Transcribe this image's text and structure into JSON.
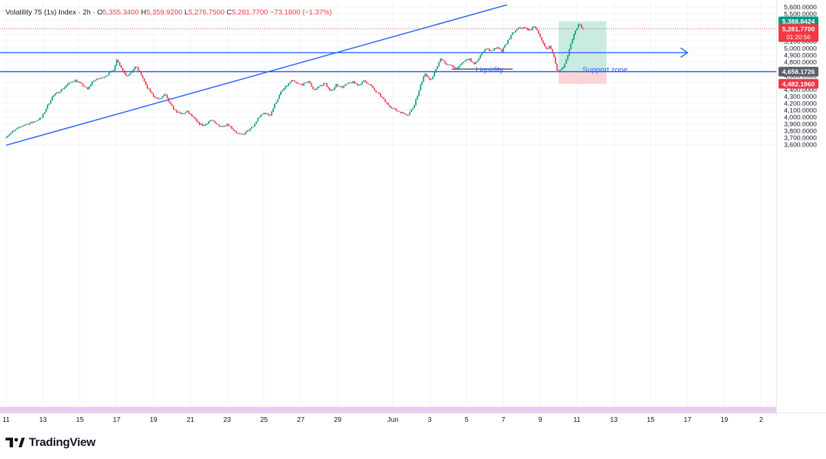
{
  "header": {
    "symbol": "Volatility 75 (1s) Index",
    "interval": "2h",
    "open_label": "O",
    "open": "5,355.3400",
    "high_label": "H",
    "high": "5,359.9200",
    "low_label": "L",
    "low": "5,276.7500",
    "close_label": "C",
    "close": "5,281.7700",
    "change": "−73.1800 (−1.37%)"
  },
  "branding": {
    "name": "TradingView"
  },
  "colors": {
    "up": "#089981",
    "down": "#f23645",
    "line": "#2962ff",
    "profit_zone": "#b8e6d5",
    "stop_zone": "#f9c9cd",
    "price_badge_green": "#089981",
    "price_badge_red": "#f23645",
    "price_badge_gray": "#5d606b"
  },
  "chart_data": {
    "type": "candlestick",
    "yticks": [
      "5,600.0000",
      "5,500.0000",
      "5,400.0000",
      "5,300.0000",
      "5,200.0000",
      "5,100.0000",
      "5,000.0000",
      "4,900.0000",
      "4,800.0000",
      "4,700.0000",
      "4,600.0000",
      "4,500.0000",
      "4,400.0000",
      "4,300.0000",
      "4,200.0000",
      "4,100.0000",
      "4,000.0000",
      "3,900.0000",
      "3,800.0000",
      "3,700.0000",
      "3,600.0000"
    ],
    "xticks": [
      {
        "label": "11",
        "day": 11
      },
      {
        "label": "13",
        "day": 13
      },
      {
        "label": "15",
        "day": 15
      },
      {
        "label": "17",
        "day": 17
      },
      {
        "label": "19",
        "day": 19
      },
      {
        "label": "21",
        "day": 21
      },
      {
        "label": "23",
        "day": 23
      },
      {
        "label": "25",
        "day": 25
      },
      {
        "label": "27",
        "day": 27
      },
      {
        "label": "29",
        "day": 29
      },
      {
        "label": "Jun",
        "day": 32
      },
      {
        "label": "3",
        "day": 34
      },
      {
        "label": "5",
        "day": 36
      },
      {
        "label": "7",
        "day": 38
      },
      {
        "label": "9",
        "day": 40
      },
      {
        "label": "11",
        "day": 42
      },
      {
        "label": "13",
        "day": 44
      },
      {
        "label": "15",
        "day": 46
      },
      {
        "label": "17",
        "day": 48
      },
      {
        "label": "19",
        "day": 50
      },
      {
        "label": "2",
        "day": 52
      }
    ],
    "ylim": [
      3560,
      5630
    ],
    "price_path": [
      [
        11.0,
        3700
      ],
      [
        11.5,
        3800
      ],
      [
        12.0,
        3880
      ],
      [
        12.5,
        3920
      ],
      [
        13.0,
        3990
      ],
      [
        13.3,
        4150
      ],
      [
        13.6,
        4300
      ],
      [
        14.0,
        4380
      ],
      [
        14.4,
        4470
      ],
      [
        14.8,
        4540
      ],
      [
        15.2,
        4470
      ],
      [
        15.5,
        4400
      ],
      [
        15.8,
        4530
      ],
      [
        16.2,
        4560
      ],
      [
        16.6,
        4620
      ],
      [
        16.9,
        4680
      ],
      [
        17.1,
        4840
      ],
      [
        17.3,
        4730
      ],
      [
        17.6,
        4600
      ],
      [
        17.9,
        4650
      ],
      [
        18.1,
        4740
      ],
      [
        18.4,
        4620
      ],
      [
        18.7,
        4440
      ],
      [
        19.1,
        4300
      ],
      [
        19.4,
        4250
      ],
      [
        19.7,
        4330
      ],
      [
        20.0,
        4180
      ],
      [
        20.3,
        4080
      ],
      [
        20.6,
        4040
      ],
      [
        20.9,
        4080
      ],
      [
        21.2,
        4000
      ],
      [
        21.5,
        3910
      ],
      [
        21.8,
        3870
      ],
      [
        22.2,
        3960
      ],
      [
        22.5,
        3890
      ],
      [
        22.8,
        3860
      ],
      [
        23.1,
        3900
      ],
      [
        23.4,
        3820
      ],
      [
        23.7,
        3750
      ],
      [
        23.9,
        3740
      ],
      [
        24.2,
        3800
      ],
      [
        24.5,
        3860
      ],
      [
        24.8,
        4000
      ],
      [
        25.1,
        4060
      ],
      [
        25.4,
        4020
      ],
      [
        25.7,
        4200
      ],
      [
        26.0,
        4360
      ],
      [
        26.3,
        4450
      ],
      [
        26.6,
        4530
      ],
      [
        26.9,
        4480
      ],
      [
        27.2,
        4470
      ],
      [
        27.5,
        4520
      ],
      [
        27.8,
        4390
      ],
      [
        28.1,
        4450
      ],
      [
        28.4,
        4490
      ],
      [
        28.7,
        4360
      ],
      [
        29.0,
        4470
      ],
      [
        29.3,
        4430
      ],
      [
        29.6,
        4480
      ],
      [
        29.9,
        4510
      ],
      [
        30.2,
        4460
      ],
      [
        30.5,
        4520
      ],
      [
        30.8,
        4480
      ],
      [
        31.1,
        4380
      ],
      [
        31.4,
        4310
      ],
      [
        31.7,
        4210
      ],
      [
        32.0,
        4140
      ],
      [
        32.3,
        4090
      ],
      [
        32.6,
        4060
      ],
      [
        32.9,
        4030
      ],
      [
        33.2,
        4150
      ],
      [
        33.5,
        4380
      ],
      [
        33.8,
        4640
      ],
      [
        34.1,
        4520
      ],
      [
        34.4,
        4680
      ],
      [
        34.7,
        4860
      ],
      [
        35.0,
        4760
      ],
      [
        35.3,
        4740
      ],
      [
        35.6,
        4700
      ],
      [
        35.9,
        4800
      ],
      [
        36.2,
        4850
      ],
      [
        36.5,
        4760
      ],
      [
        36.8,
        4880
      ],
      [
        37.1,
        5000
      ],
      [
        37.4,
        4960
      ],
      [
        37.7,
        5010
      ],
      [
        38.0,
        4950
      ],
      [
        38.3,
        5100
      ],
      [
        38.6,
        5220
      ],
      [
        38.9,
        5290
      ],
      [
        39.2,
        5300
      ],
      [
        39.5,
        5260
      ],
      [
        39.8,
        5320
      ],
      [
        40.0,
        5220
      ],
      [
        40.2,
        5080
      ],
      [
        40.4,
        4990
      ],
      [
        40.6,
        5030
      ],
      [
        40.8,
        4900
      ],
      [
        41.0,
        4680
      ],
      [
        41.2,
        4680
      ],
      [
        41.4,
        4760
      ],
      [
        41.6,
        4920
      ],
      [
        41.8,
        5100
      ],
      [
        42.0,
        5260
      ],
      [
        42.2,
        5360
      ],
      [
        42.35,
        5281.77
      ]
    ],
    "current_time_badge": "01:20:56",
    "price_badges": [
      {
        "price": 5388.8424,
        "label": "5,388.8424",
        "kind": "green"
      },
      {
        "price": 5281.77,
        "label": "5,281.7700",
        "kind": "red"
      },
      {
        "price": 4658.1726,
        "label": "4,658.1726",
        "kind": "gray"
      },
      {
        "price": 4482.196,
        "label": "4,482.1960",
        "kind": "red"
      }
    ],
    "horizontal_lines": [
      {
        "price": 4935,
        "day_start": 11,
        "day_end": 48,
        "arrow": true
      },
      {
        "price": 4658.1726,
        "day_start": 11,
        "day_end": 54,
        "arrow": false
      }
    ],
    "trend_line": {
      "from": [
        11,
        3590
      ],
      "to": [
        38.2,
        5630
      ]
    },
    "position": {
      "day_start": 41.0,
      "day_end": 43.6,
      "entry": 4658.1726,
      "target": 5388.8424,
      "stop": 4482.196
    },
    "liquidity_line": {
      "price": 4696,
      "day_start": 35.2,
      "day_end": 38.5
    },
    "annotations": [
      {
        "text": "Liquidity",
        "day": 36.5,
        "price": 4700
      },
      {
        "text": "Support zone",
        "day": 42.3,
        "price": 4700
      }
    ]
  }
}
